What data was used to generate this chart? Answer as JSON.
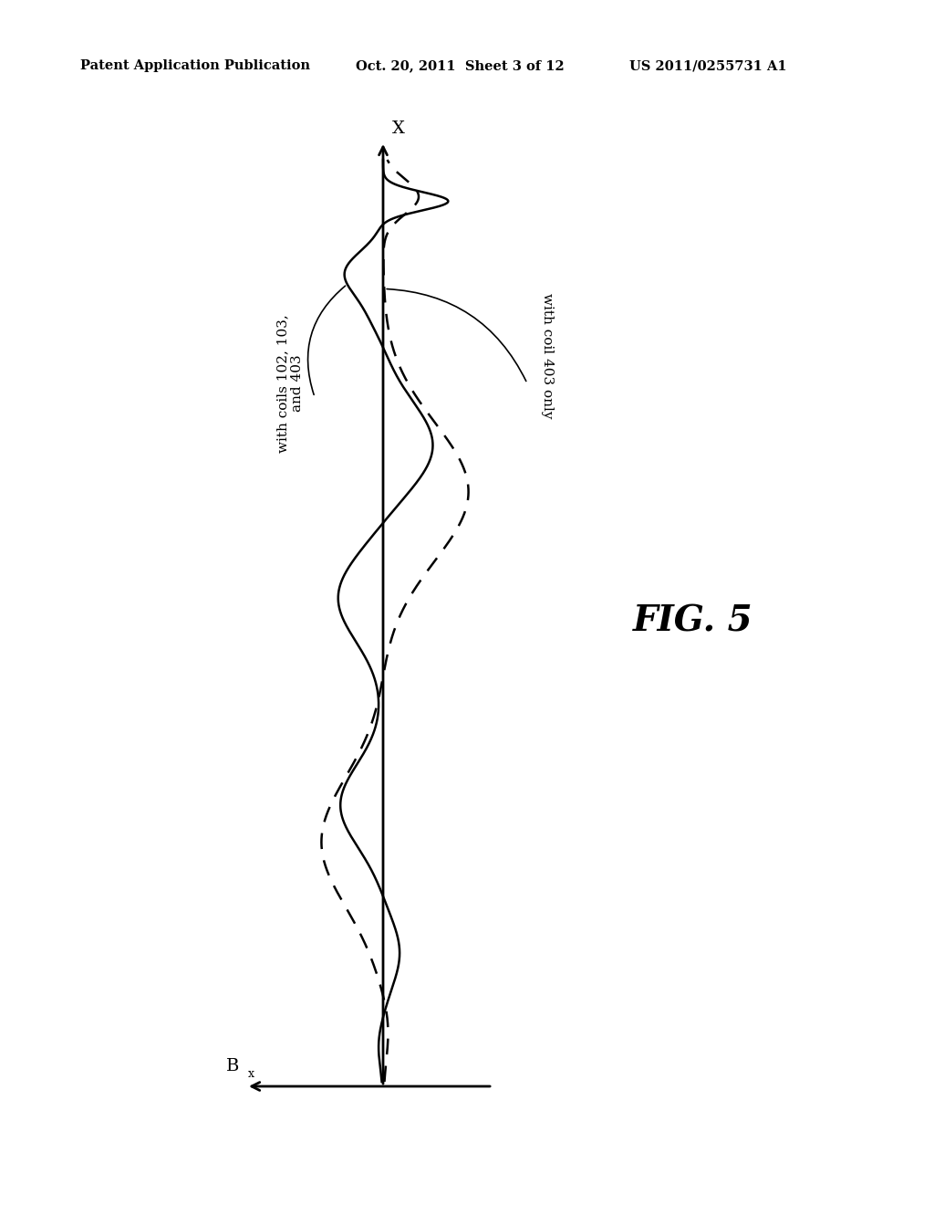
{
  "background_color": "#ffffff",
  "header_left": "Patent Application Publication",
  "header_mid": "Oct. 20, 2011  Sheet 3 of 12",
  "header_right": "US 2011/0255731 A1",
  "fig_label": "FIG. 5",
  "x_axis_label": "X",
  "bx_label": "B",
  "bx_subscript": "x",
  "label_solid": "with coils 102, 103,\nand 403",
  "label_dashed": "with coil 403 only",
  "line_color": "#000000",
  "header_fontsize": 10.5,
  "fig_label_fontsize": 28
}
